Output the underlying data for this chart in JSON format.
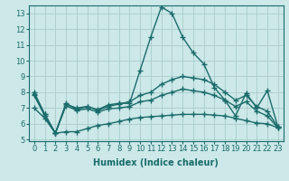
{
  "title": "",
  "xlabel": "Humidex (Indice chaleur)",
  "x": [
    0,
    1,
    2,
    3,
    4,
    5,
    6,
    7,
    8,
    9,
    10,
    11,
    12,
    13,
    14,
    15,
    16,
    17,
    18,
    19,
    20,
    21,
    22,
    23
  ],
  "line1": [
    8.0,
    6.6,
    5.4,
    7.3,
    6.9,
    7.1,
    6.9,
    7.2,
    7.3,
    7.3,
    9.4,
    11.5,
    13.4,
    13.0,
    11.5,
    10.5,
    9.8,
    8.3,
    7.5,
    6.5,
    7.95,
    7.0,
    8.1,
    5.8
  ],
  "line2": [
    7.9,
    6.6,
    5.4,
    7.25,
    7.0,
    7.1,
    6.85,
    7.1,
    7.25,
    7.4,
    7.8,
    8.0,
    8.5,
    8.8,
    9.0,
    8.9,
    8.8,
    8.5,
    8.0,
    7.5,
    7.8,
    7.1,
    6.8,
    5.8
  ],
  "line3": [
    7.8,
    6.5,
    5.4,
    7.15,
    6.85,
    6.95,
    6.75,
    6.95,
    7.0,
    7.1,
    7.4,
    7.5,
    7.8,
    8.0,
    8.2,
    8.1,
    8.0,
    7.8,
    7.5,
    7.1,
    7.4,
    6.8,
    6.5,
    5.75
  ],
  "line4": [
    7.0,
    6.35,
    5.4,
    5.5,
    5.5,
    5.7,
    5.9,
    6.0,
    6.15,
    6.3,
    6.4,
    6.45,
    6.5,
    6.55,
    6.6,
    6.6,
    6.6,
    6.55,
    6.5,
    6.35,
    6.2,
    6.05,
    6.0,
    5.75
  ],
  "ylim_min": 5,
  "ylim_max": 13.5,
  "yticks": [
    5,
    6,
    7,
    8,
    9,
    10,
    11,
    12,
    13
  ],
  "bg_color": "#cce8e8",
  "grid_color": "#aacccc",
  "line_color": "#1a6b6b",
  "marker": "+",
  "marker_size": 4,
  "line_width": 1.0,
  "tick_label_size": 6,
  "xlabel_size": 7
}
